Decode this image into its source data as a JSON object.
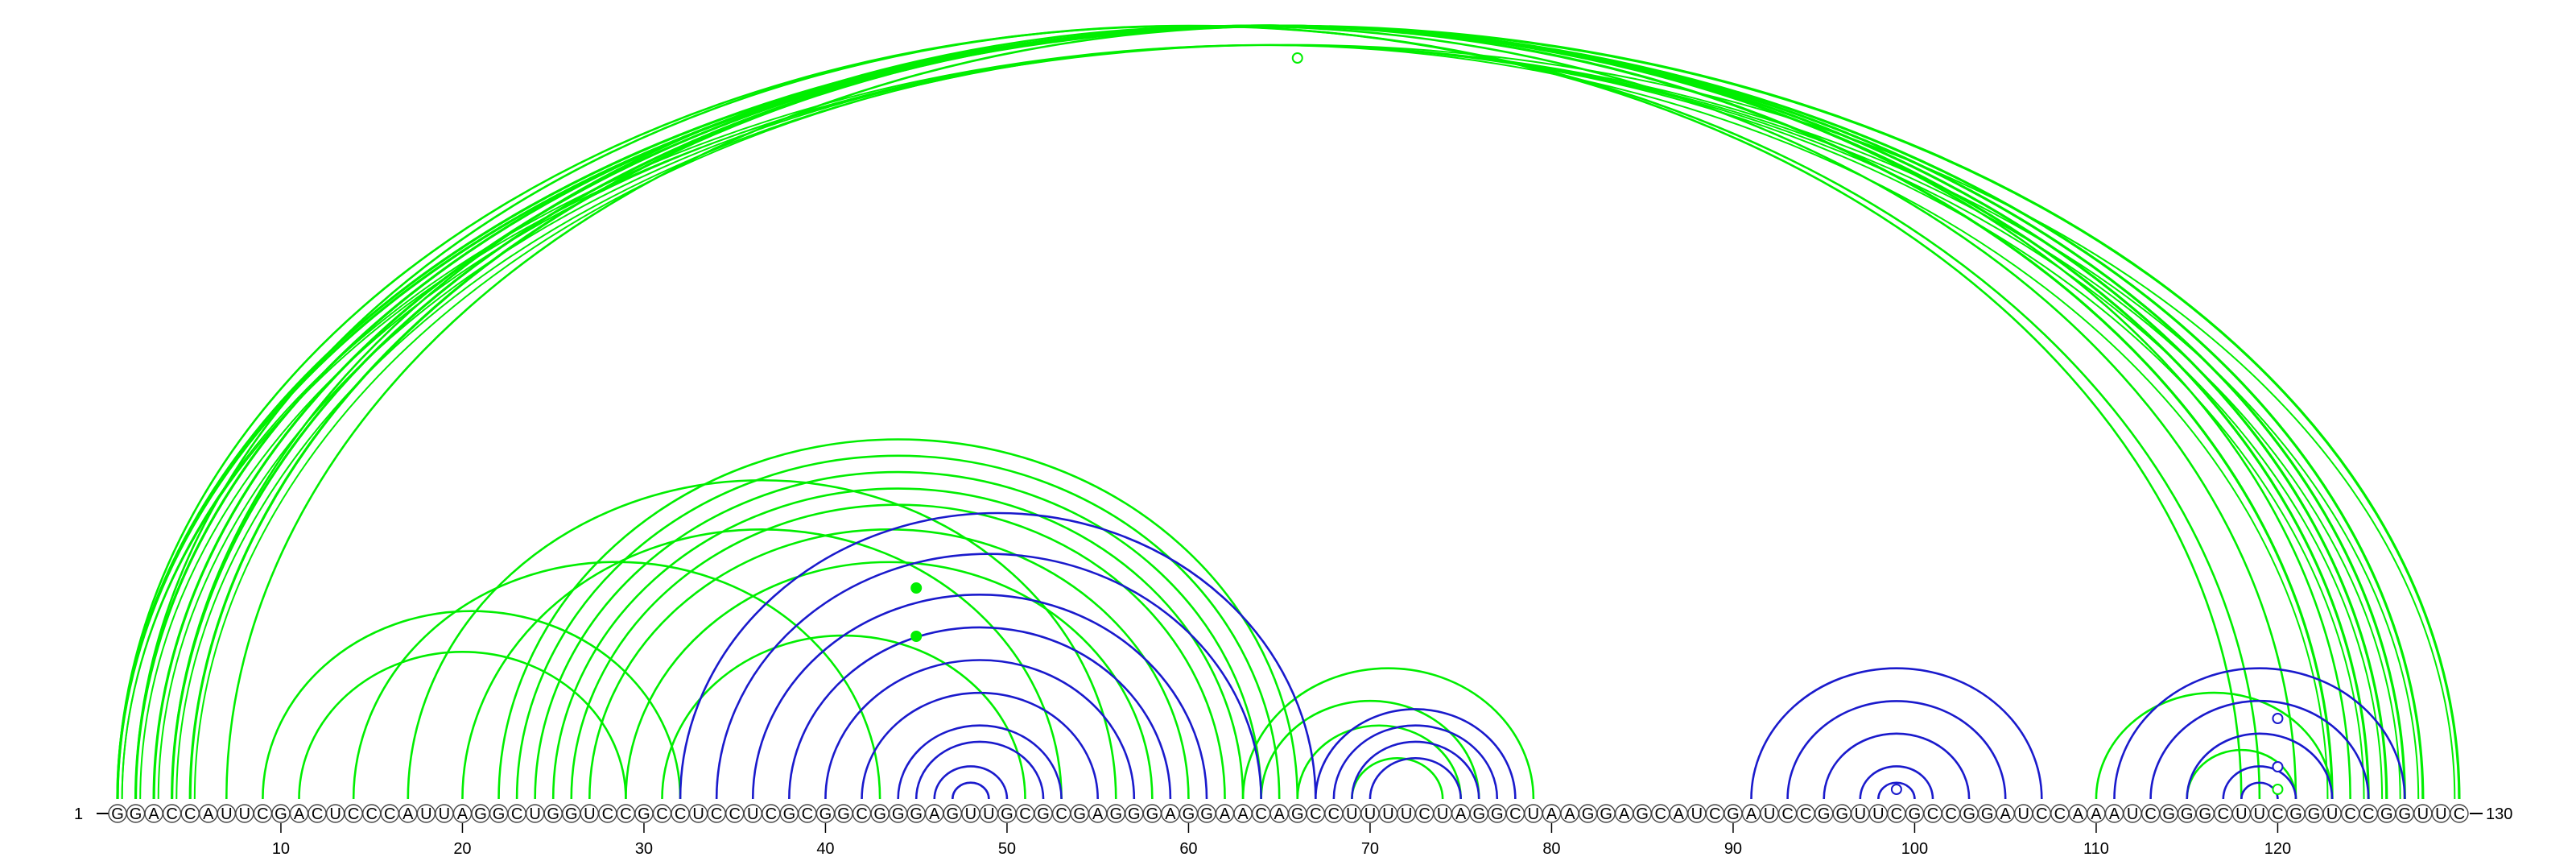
{
  "sequence": "GGACCAUUCGACUCCCAUUAGGCUGGUCCGCCUCCUCGCGGCGGGAGUUGCGCGAGGGAGGAACAGCCUUUUCUAGGCUAAGGAGCAUCGAUCCGGUUCGCCGGAUCCAAAUCGGGCUUCGGUCCGGUUC",
  "start_label": "1",
  "end_label": "130",
  "tick_labels": [
    "10",
    "20",
    "30",
    "40",
    "50",
    "60",
    "70",
    "80",
    "90",
    "100",
    "110",
    "120"
  ],
  "colors": {
    "green": "#00ee00",
    "blue": "#1a1acc",
    "outline": "#444444"
  },
  "arcs": {
    "green_long": [
      [
        1,
        130
      ],
      [
        1,
        128
      ],
      [
        2,
        127
      ],
      [
        3,
        126
      ],
      [
        4,
        125
      ],
      [
        5,
        123
      ]
    ],
    "green_pairs": [
      [
        1,
        119
      ],
      [
        2,
        118
      ],
      [
        4,
        121
      ],
      [
        7,
        124
      ],
      [
        9,
        32
      ],
      [
        14,
        43
      ],
      [
        17,
        56
      ],
      [
        20,
        53
      ],
      [
        11,
        29
      ],
      [
        22,
        66
      ],
      [
        23,
        65
      ],
      [
        24,
        64
      ],
      [
        25,
        63
      ],
      [
        26,
        62
      ],
      [
        27,
        60
      ],
      [
        29,
        58
      ],
      [
        31,
        51
      ],
      [
        63,
        79
      ],
      [
        64,
        76
      ],
      [
        66,
        75
      ],
      [
        69,
        74
      ],
      [
        110,
        123
      ],
      [
        115,
        121
      ]
    ],
    "blue_pairs": [
      [
        32,
        67
      ],
      [
        34,
        64
      ],
      [
        36,
        61
      ],
      [
        38,
        59
      ],
      [
        40,
        57
      ],
      [
        42,
        55
      ],
      [
        44,
        53
      ],
      [
        45,
        52
      ],
      [
        46,
        50
      ],
      [
        47,
        49
      ],
      [
        67,
        78
      ],
      [
        68,
        77
      ],
      [
        69,
        76
      ],
      [
        70,
        75
      ],
      [
        91,
        107
      ],
      [
        93,
        105
      ],
      [
        95,
        103
      ],
      [
        97,
        101
      ],
      [
        98,
        100
      ],
      [
        111,
        127
      ],
      [
        113,
        125
      ],
      [
        115,
        123
      ],
      [
        117,
        121
      ],
      [
        118,
        120
      ]
    ],
    "markers": [
      {
        "at": 66,
        "level": "top",
        "color": "green",
        "filled": false
      },
      {
        "at": 45,
        "level": "mid1",
        "color": "green",
        "filled": true
      },
      {
        "at": 45,
        "level": "mid2",
        "color": "green",
        "filled": true
      },
      {
        "at": 99,
        "level": "low",
        "color": "blue",
        "filled": false
      },
      {
        "at": 120,
        "level": "r1",
        "color": "blue",
        "filled": false
      },
      {
        "at": 120,
        "level": "r2",
        "color": "blue",
        "filled": false
      },
      {
        "at": 120,
        "level": "r3",
        "color": "green",
        "filled": false
      }
    ]
  }
}
